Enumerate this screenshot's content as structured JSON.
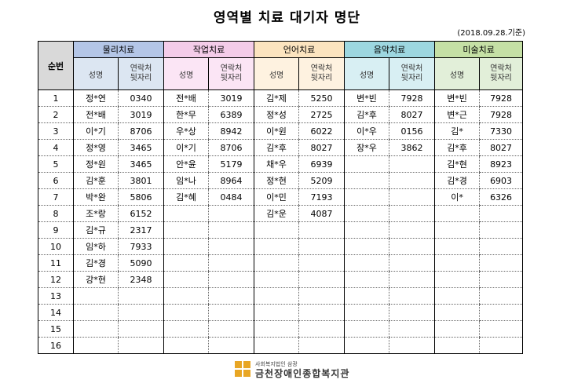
{
  "title": "영역별 치료 대기자 명단",
  "date": "(2018.09.28.기준)",
  "header": {
    "seq_label": "순번",
    "groups": [
      {
        "label": "물리치료",
        "color": "#b4c6e7"
      },
      {
        "label": "작업치료",
        "color": "#f4cce9"
      },
      {
        "label": "언어치료",
        "color": "#fce4bf"
      },
      {
        "label": "음악치료",
        "color": "#9dd7e0"
      },
      {
        "label": "미술치료",
        "color": "#c5e0a5"
      }
    ],
    "sub_name": "성명",
    "sub_phone_1": "연락처",
    "sub_phone_2": "뒷자리",
    "sub_colors": [
      "#dce6f2",
      "#fbe5f5",
      "#fef2e0",
      "#d8eff3",
      "#e2efd9"
    ]
  },
  "rows": [
    {
      "seq": "1",
      "cells": [
        [
          "정*연",
          "0340"
        ],
        [
          "전*배",
          "3019"
        ],
        [
          "김*제",
          "5250"
        ],
        [
          "변*빈",
          "7928"
        ],
        [
          "변*빈",
          "7928"
        ]
      ]
    },
    {
      "seq": "2",
      "cells": [
        [
          "전*배",
          "3019"
        ],
        [
          "한*무",
          "6389"
        ],
        [
          "정*성",
          "2725"
        ],
        [
          "김*후",
          "8027"
        ],
        [
          "변*근",
          "7928"
        ]
      ]
    },
    {
      "seq": "3",
      "cells": [
        [
          "이*기",
          "8706"
        ],
        [
          "우*상",
          "8942"
        ],
        [
          "이*원",
          "6022"
        ],
        [
          "이*우",
          "0156"
        ],
        [
          "김*",
          "7330"
        ]
      ]
    },
    {
      "seq": "4",
      "cells": [
        [
          "정*영",
          "3465"
        ],
        [
          "이*기",
          "8706"
        ],
        [
          "김*후",
          "8027"
        ],
        [
          "장*우",
          "3862"
        ],
        [
          "김*후",
          "8027"
        ]
      ]
    },
    {
      "seq": "5",
      "cells": [
        [
          "정*원",
          "3465"
        ],
        [
          "안*윤",
          "5179"
        ],
        [
          "채*우",
          "6939"
        ],
        [
          "",
          ""
        ],
        [
          "김*현",
          "8923"
        ]
      ]
    },
    {
      "seq": "6",
      "cells": [
        [
          "김*훈",
          "3801"
        ],
        [
          "임*나",
          "8964"
        ],
        [
          "정*현",
          "5209"
        ],
        [
          "",
          ""
        ],
        [
          "김*경",
          "6903"
        ]
      ]
    },
    {
      "seq": "7",
      "cells": [
        [
          "박*완",
          "5806"
        ],
        [
          "김*혜",
          "0484"
        ],
        [
          "이*민",
          "7193"
        ],
        [
          "",
          ""
        ],
        [
          "이*",
          "6326"
        ]
      ]
    },
    {
      "seq": "8",
      "cells": [
        [
          "조*랑",
          "6152"
        ],
        [
          "",
          ""
        ],
        [
          "김*운",
          "4087"
        ],
        [
          "",
          ""
        ],
        [
          "",
          ""
        ]
      ]
    },
    {
      "seq": "9",
      "cells": [
        [
          "김*규",
          "2317"
        ],
        [
          "",
          ""
        ],
        [
          "",
          ""
        ],
        [
          "",
          ""
        ],
        [
          "",
          ""
        ]
      ]
    },
    {
      "seq": "10",
      "cells": [
        [
          "임*하",
          "7933"
        ],
        [
          "",
          ""
        ],
        [
          "",
          ""
        ],
        [
          "",
          ""
        ],
        [
          "",
          ""
        ]
      ]
    },
    {
      "seq": "11",
      "cells": [
        [
          "김*경",
          "5090"
        ],
        [
          "",
          ""
        ],
        [
          "",
          ""
        ],
        [
          "",
          ""
        ],
        [
          "",
          ""
        ]
      ]
    },
    {
      "seq": "12",
      "cells": [
        [
          "강*현",
          "2348"
        ],
        [
          "",
          ""
        ],
        [
          "",
          ""
        ],
        [
          "",
          ""
        ],
        [
          "",
          ""
        ]
      ]
    },
    {
      "seq": "13",
      "cells": [
        [
          "",
          ""
        ],
        [
          "",
          ""
        ],
        [
          "",
          ""
        ],
        [
          "",
          ""
        ],
        [
          "",
          ""
        ]
      ]
    },
    {
      "seq": "14",
      "cells": [
        [
          "",
          ""
        ],
        [
          "",
          ""
        ],
        [
          "",
          ""
        ],
        [
          "",
          ""
        ],
        [
          "",
          ""
        ]
      ]
    },
    {
      "seq": "15",
      "cells": [
        [
          "",
          ""
        ],
        [
          "",
          ""
        ],
        [
          "",
          ""
        ],
        [
          "",
          ""
        ],
        [
          "",
          ""
        ]
      ]
    },
    {
      "seq": "16",
      "cells": [
        [
          "",
          ""
        ],
        [
          "",
          ""
        ],
        [
          "",
          ""
        ],
        [
          "",
          ""
        ],
        [
          "",
          ""
        ]
      ]
    }
  ],
  "footer": {
    "org_small": "사회복지법인 삼광",
    "org_name": "금천장애인종합복지관",
    "logo_color": "#e8a624"
  }
}
